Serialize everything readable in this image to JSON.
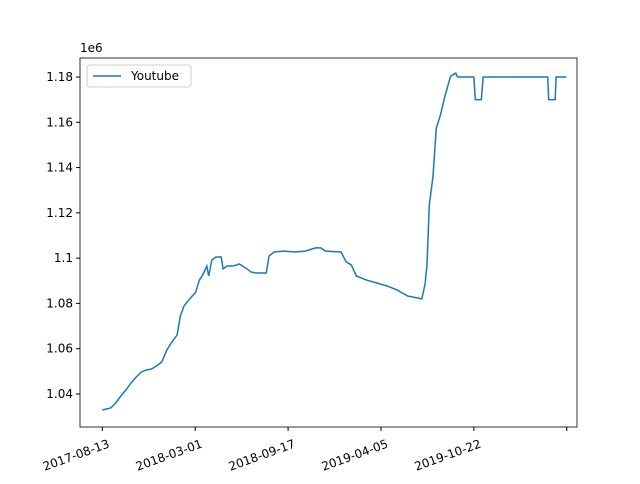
{
  "chart_data": {
    "type": "line",
    "y_offset_label": "1e6",
    "x": [
      "2017-08-13",
      "2017-08-31",
      "2017-09-11",
      "2017-09-22",
      "2017-10-03",
      "2017-10-14",
      "2017-10-25",
      "2017-11-05",
      "2017-11-16",
      "2017-11-27",
      "2017-12-08",
      "2017-12-19",
      "2017-12-30",
      "2018-01-10",
      "2018-01-21",
      "2018-01-28",
      "2018-02-05",
      "2018-02-19",
      "2018-03-02",
      "2018-03-10",
      "2018-03-17",
      "2018-03-26",
      "2018-03-30",
      "2018-04-06",
      "2018-04-15",
      "2018-04-26",
      "2018-04-30",
      "2018-05-09",
      "2018-05-22",
      "2018-06-04",
      "2018-06-18",
      "2018-06-29",
      "2018-07-10",
      "2018-07-21",
      "2018-08-01",
      "2018-08-07",
      "2018-08-18",
      "2018-09-09",
      "2018-10-02",
      "2018-10-24",
      "2018-11-15",
      "2018-11-26",
      "2018-12-07",
      "2019-01-09",
      "2019-01-20",
      "2019-01-31",
      "2019-02-11",
      "2019-03-05",
      "2019-03-27",
      "2019-04-18",
      "2019-05-10",
      "2019-06-01",
      "2019-06-23",
      "2019-07-02",
      "2019-07-09",
      "2019-07-13",
      "2019-07-18",
      "2019-07-26",
      "2019-08-02",
      "2019-08-11",
      "2019-08-19",
      "2019-08-26",
      "2019-09-02",
      "2019-09-13",
      "2019-09-17",
      "2019-10-22",
      "2019-10-25",
      "2019-11-07",
      "2019-11-11",
      "2020-03-29",
      "2020-03-31",
      "2020-04-14",
      "2020-04-16",
      "2020-05-08"
    ],
    "series": [
      {
        "name": "Youtube",
        "color": "#1f77b4",
        "values": [
          1.0329,
          1.0338,
          1.036,
          1.0391,
          1.0418,
          1.0449,
          1.0475,
          1.0497,
          1.0506,
          1.051,
          1.0524,
          1.0541,
          1.0594,
          1.063,
          1.066,
          1.0744,
          1.0789,
          1.0824,
          1.085,
          1.0903,
          1.0925,
          1.0965,
          1.0921,
          1.0992,
          1.1005,
          1.1005,
          1.0952,
          1.0965,
          1.0965,
          1.0974,
          1.0956,
          1.0939,
          1.0934,
          1.0934,
          1.0934,
          1.1009,
          1.1027,
          1.1031,
          1.1027,
          1.1031,
          1.1045,
          1.1045,
          1.1031,
          1.1027,
          1.0983,
          1.097,
          1.0921,
          1.0903,
          1.089,
          1.0877,
          1.0859,
          1.0833,
          1.0824,
          1.082,
          1.0886,
          1.097,
          1.1234,
          1.1362,
          1.1574,
          1.1632,
          1.1702,
          1.1755,
          1.1804,
          1.1817,
          1.18,
          1.18,
          1.17,
          1.17,
          1.18,
          1.18,
          1.17,
          1.17,
          1.18,
          1.18
        ]
      }
    ],
    "xlim": [
      "2017-06-26",
      "2020-05-31"
    ],
    "xticks": [
      "2017-08-13",
      "2018-03-01",
      "2018-09-17",
      "2019-04-05",
      "2019-10-22",
      {
        "value": "2020-05-09",
        "label": null
      }
    ],
    "ylim": [
      1.0254,
      1.1884
    ],
    "yticks": [
      1.04,
      1.06,
      1.08,
      1.1,
      1.12,
      1.14,
      1.16,
      1.18
    ],
    "legend": "upper left"
  }
}
